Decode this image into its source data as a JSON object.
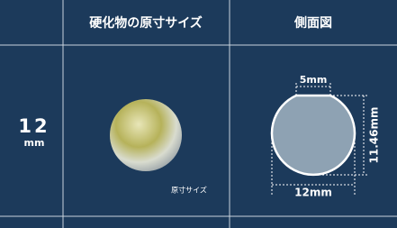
{
  "header": {
    "columns": [
      "硬化物の原寸サイズ",
      "側面図"
    ]
  },
  "rows": [
    {
      "size": "12",
      "unit": "mm",
      "photo_caption": "原寸サイズ",
      "dimensions": {
        "top": "5mm",
        "height": "11.46mm",
        "width": "12mm"
      }
    }
  ]
}
